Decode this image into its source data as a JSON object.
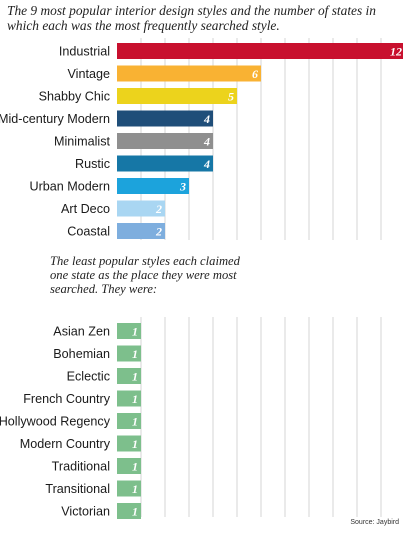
{
  "title": "The 9 most popular interior design styles and the number of states in which each was the most frequently searched style.",
  "note": "The least popular styles each claimed one state as the place they were most searched. They were:",
  "source": "Source: Jaybird",
  "chart_data": {
    "type": "bar",
    "orientation": "horizontal",
    "title": "The 9 most popular interior design styles and the number of states in which each was the most frequently searched style.",
    "xlim": [
      0,
      12
    ],
    "grid": true,
    "groups": [
      {
        "categories": [
          "Industrial",
          "Vintage",
          "Shabby Chic",
          "Mid-century Modern",
          "Minimalist",
          "Rustic",
          "Urban Modern",
          "Art Deco",
          "Coastal"
        ],
        "values": [
          12,
          6,
          5,
          4,
          4,
          4,
          3,
          2,
          2
        ],
        "labels": [
          "12",
          "6",
          "5",
          "4",
          "4",
          "4",
          "3",
          "2",
          "2"
        ],
        "colors": [
          "#c8102e",
          "#f9b233",
          "#ecd31c",
          "#1f4e79",
          "#8f8f8f",
          "#1677a6",
          "#1ca3dc",
          "#a9d6f2",
          "#7eaede"
        ]
      },
      {
        "categories": [
          "Asian Zen",
          "Bohemian",
          "Eclectic",
          "French Country",
          "Hollywood Regency",
          "Modern Country",
          "Traditional",
          "Transitional",
          "Victorian"
        ],
        "values": [
          1,
          1,
          1,
          1,
          1,
          1,
          1,
          1,
          1
        ],
        "labels": [
          "1",
          "1",
          "1",
          "1",
          "1",
          "1",
          "1",
          "1",
          "1"
        ],
        "colors": [
          "#7dbf8c",
          "#7dbf8c",
          "#7dbf8c",
          "#7dbf8c",
          "#7dbf8c",
          "#7dbf8c",
          "#7dbf8c",
          "#7dbf8c",
          "#7dbf8c"
        ]
      }
    ]
  }
}
